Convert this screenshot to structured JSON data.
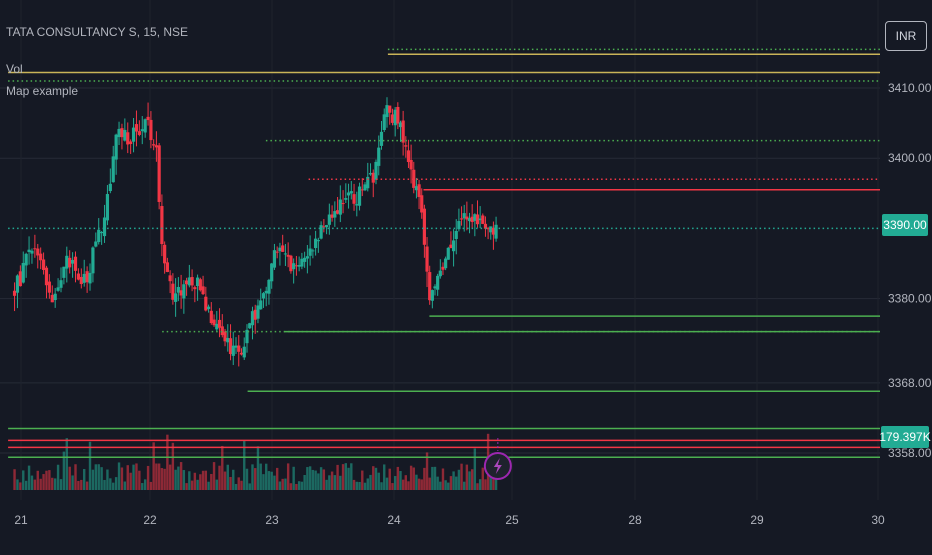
{
  "chart_data": {
    "type": "candlestick",
    "symbol_header": "TATA CONSULTANCY S, 15, NSE",
    "indicators": [
      "Vol",
      "Map example"
    ],
    "currency": "INR",
    "y_axis": {
      "range": [
        3356,
        3420
      ],
      "tick_labels": [
        "3410.00",
        "3400.00",
        "3380.00",
        "3368.00",
        "3358.00"
      ]
    },
    "x_axis": {
      "tick_labels": [
        "21",
        "22",
        "23",
        "24",
        "25",
        "28",
        "29",
        "30"
      ]
    },
    "current_price": "3390.00",
    "volume_value": "179.397K",
    "colors": {
      "up": "#22ab94",
      "down": "#f23645",
      "level_green": "#4caf50",
      "level_red": "#f23645",
      "level_yellow": "#c9b458"
    },
    "horizontal_levels": [
      {
        "price": 3415.5,
        "from_day": 23.95,
        "style": "dotted",
        "color": "green"
      },
      {
        "price": 3414.8,
        "from_day": 23.95,
        "style": "solid",
        "color": "yellow"
      },
      {
        "price": 3412.2,
        "from_day": 20.9,
        "style": "solid",
        "color": "yellow"
      },
      {
        "price": 3411.0,
        "from_day": 20.9,
        "style": "dotted",
        "color": "green"
      },
      {
        "price": 3402.5,
        "from_day": 22.95,
        "style": "dotted",
        "color": "green"
      },
      {
        "price": 3397.0,
        "from_day": 23.3,
        "style": "dotted",
        "color": "red"
      },
      {
        "price": 3395.5,
        "from_day": 24.25,
        "style": "solid",
        "color": "red"
      },
      {
        "price": 3390.0,
        "from_day": 20.9,
        "style": "dotted",
        "color": "teal"
      },
      {
        "price": 3377.5,
        "from_day": 24.3,
        "style": "solid",
        "color": "green"
      },
      {
        "price": 3375.3,
        "from_day": 22.1,
        "style": "dotted",
        "color": "green"
      },
      {
        "price": 3375.3,
        "from_day": 23.1,
        "style": "solid",
        "color": "green"
      },
      {
        "price": 3366.8,
        "from_day": 22.8,
        "style": "solid",
        "color": "green"
      },
      {
        "price": 3361.5,
        "from_day": 20.9,
        "style": "solid",
        "color": "green"
      },
      {
        "price": 3359.8,
        "from_day": 20.9,
        "style": "solid",
        "color": "red"
      },
      {
        "price": 3358.8,
        "from_day": 20.9,
        "style": "solid",
        "color": "red"
      },
      {
        "price": 3357.4,
        "from_day": 20.9,
        "style": "solid",
        "color": "green"
      }
    ],
    "close_path": [
      [
        20.95,
        3381
      ],
      [
        21.1,
        3388
      ],
      [
        21.25,
        3380
      ],
      [
        21.35,
        3386
      ],
      [
        21.5,
        3382
      ],
      [
        21.65,
        3392
      ],
      [
        21.75,
        3405
      ],
      [
        21.85,
        3402
      ],
      [
        21.95,
        3406
      ],
      [
        22.05,
        3402
      ],
      [
        22.1,
        3388
      ],
      [
        22.2,
        3380
      ],
      [
        22.35,
        3383
      ],
      [
        22.5,
        3378
      ],
      [
        22.6,
        3375
      ],
      [
        22.7,
        3372
      ],
      [
        22.8,
        3375
      ],
      [
        22.95,
        3382
      ],
      [
        23.05,
        3388
      ],
      [
        23.15,
        3384
      ],
      [
        23.3,
        3387
      ],
      [
        23.45,
        3392
      ],
      [
        23.6,
        3394
      ],
      [
        23.75,
        3395
      ],
      [
        23.85,
        3398
      ],
      [
        23.95,
        3408
      ],
      [
        24.05,
        3404
      ],
      [
        24.15,
        3398
      ],
      [
        24.25,
        3390
      ],
      [
        24.3,
        3380
      ],
      [
        24.4,
        3384
      ],
      [
        24.5,
        3389
      ],
      [
        24.6,
        3391
      ],
      [
        24.7,
        3392
      ],
      [
        24.8,
        3391
      ],
      [
        24.88,
        3390
      ]
    ]
  }
}
